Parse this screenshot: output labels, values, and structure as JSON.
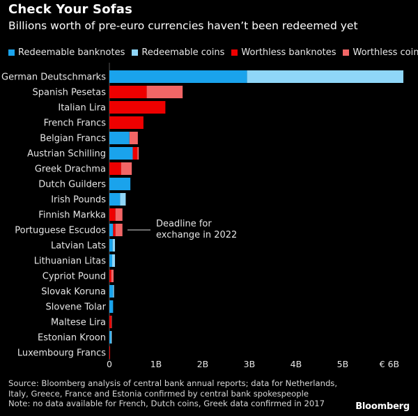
{
  "chart_data": {
    "type": "bar",
    "stacked": true,
    "orientation": "horizontal",
    "title": "Check Your Sofas",
    "subtitle": "Billions worth of pre-euro currencies haven’t been redeemed yet",
    "categories": [
      "German Deutschmarks",
      "Spanish Pesetas",
      "Italian Lira",
      "French Francs",
      "Belgian Francs",
      "Austrian Schilling",
      "Greek Drachma",
      "Dutch Guilders",
      "Irish Pounds",
      "Finnish Markka",
      "Portuguese Escudos",
      "Latvian Lats",
      "Lithuanian Litas",
      "Cypriot Pound",
      "Slovak Koruna",
      "Slovene Tolar",
      "Maltese Lira",
      "Estonian Kroon",
      "Luxembourg Francs"
    ],
    "series": [
      {
        "name": "Redeemable banknotes",
        "color": "#1aa3ec",
        "values": [
          2.95,
          0,
          0,
          0,
          0.43,
          0.5,
          0,
          0.45,
          0.23,
          0,
          0.08,
          0.07,
          0.06,
          0,
          0.08,
          0.08,
          0,
          0.03,
          0
        ]
      },
      {
        "name": "Redeemable coins",
        "color": "#8fd6f8",
        "values": [
          3.35,
          0,
          0,
          0,
          0,
          0,
          0,
          0,
          0.12,
          0,
          0,
          0.05,
          0.06,
          0,
          0.02,
          0,
          0,
          0.02,
          0
        ]
      },
      {
        "name": "Worthless banknotes",
        "color": "#ee0000",
        "values": [
          0,
          0.8,
          1.2,
          0.73,
          0,
          0.1,
          0.25,
          0,
          0,
          0.13,
          0.05,
          0,
          0,
          0.04,
          0,
          0,
          0.04,
          0,
          0.015
        ]
      },
      {
        "name": "Worthless coins",
        "color": "#f26666",
        "values": [
          0,
          0.77,
          0,
          0,
          0.18,
          0.03,
          0.23,
          0,
          0,
          0.15,
          0.15,
          0,
          0,
          0.05,
          0,
          0,
          0.01,
          0,
          0
        ]
      }
    ],
    "x_range": [
      0,
      6.3
    ],
    "x_ticks": [
      {
        "value": 0,
        "label": "0"
      },
      {
        "value": 1,
        "label": "1B"
      },
      {
        "value": 2,
        "label": "2B"
      },
      {
        "value": 3,
        "label": "3B"
      },
      {
        "value": 4,
        "label": "4B"
      },
      {
        "value": 5,
        "label": "5B"
      },
      {
        "value": 6,
        "label": "€ 6B"
      }
    ],
    "annotation": {
      "category": "Portuguese Escudos",
      "lines": [
        "Deadline for",
        "exchange in 2022"
      ]
    },
    "legend_position": "top-left"
  },
  "footer": {
    "source_line1": "Source: Bloomberg analysis of central bank annual reports; data for Netherlands,",
    "source_line2": "Italy, Greece, France and Estonia confirmed by central bank spokespeople",
    "note": "Note: no data available for French, Dutch coins, Greek data confirmed in 2017"
  },
  "brand": "Bloomberg"
}
